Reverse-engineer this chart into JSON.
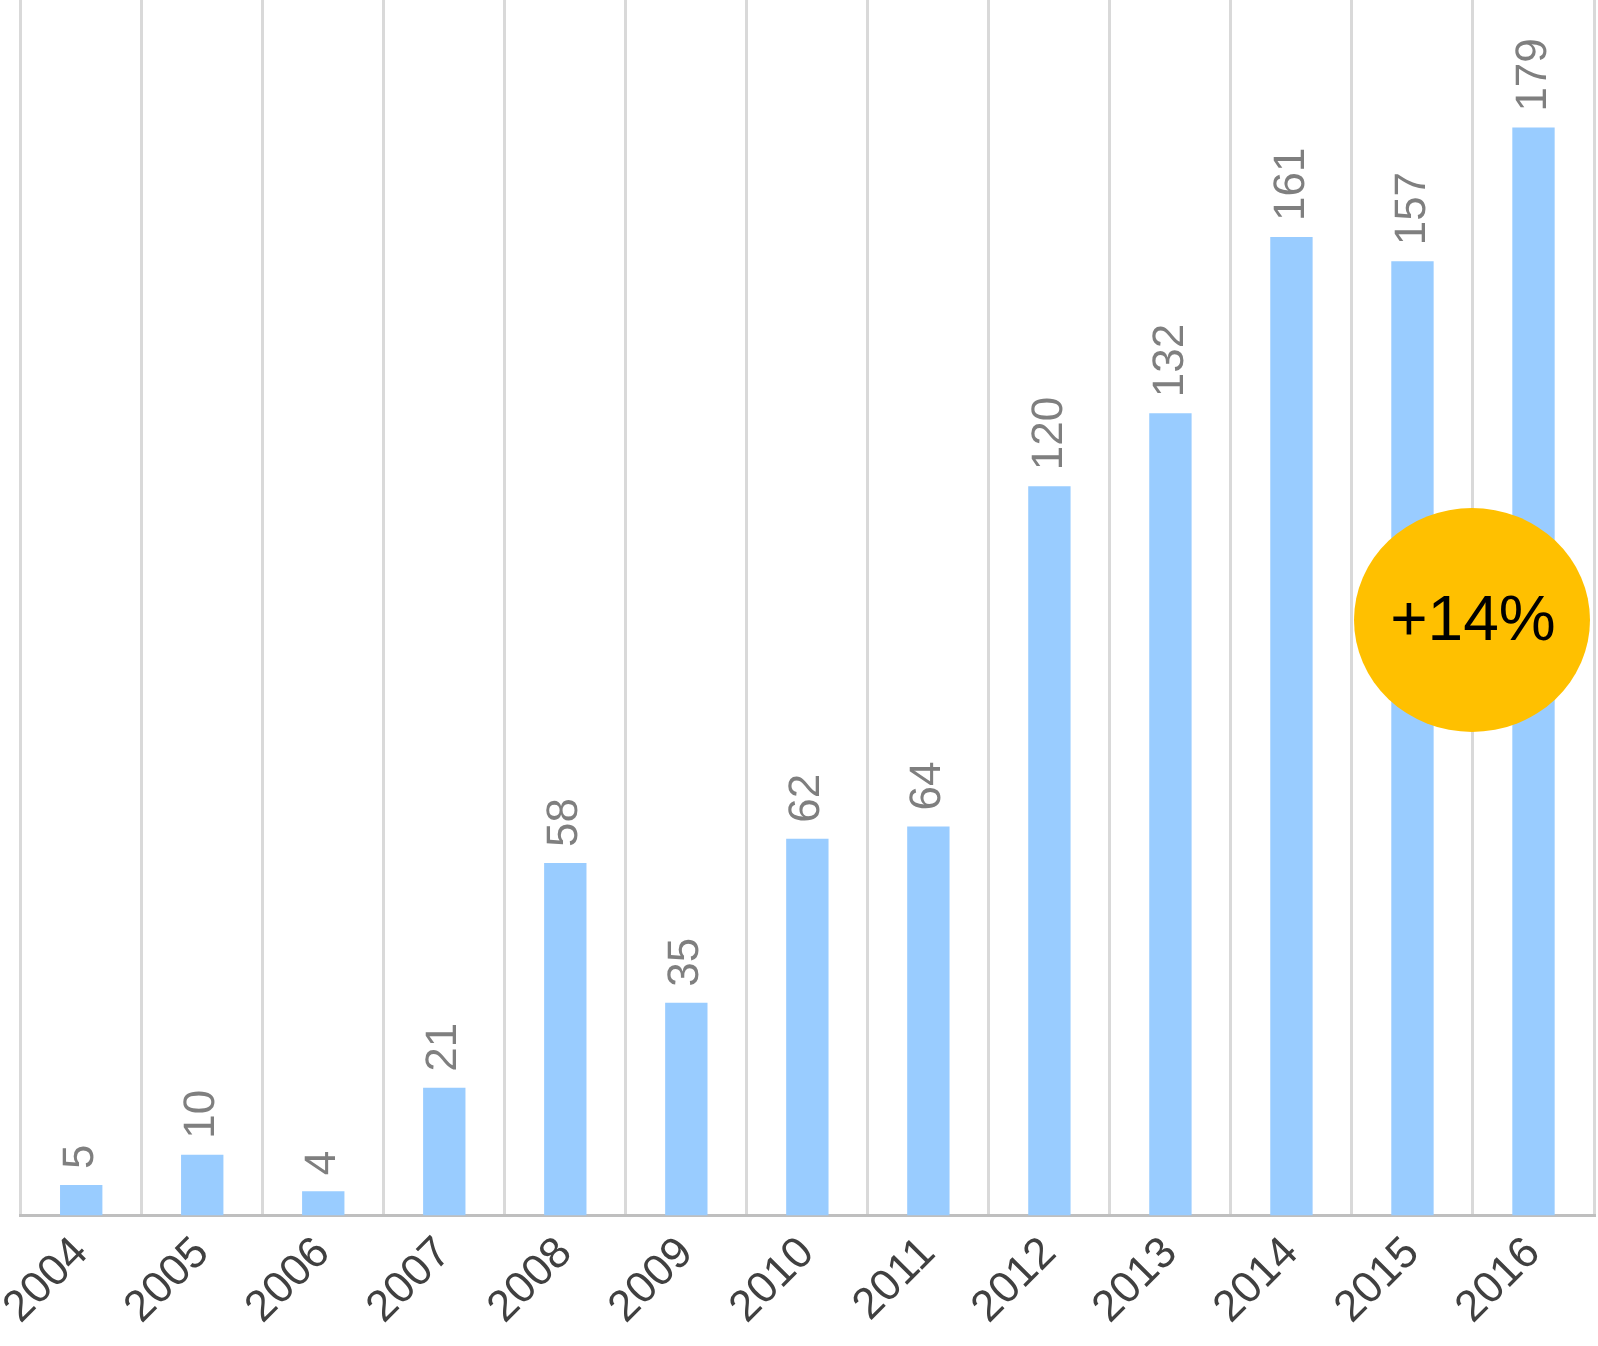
{
  "chart_data": {
    "type": "bar",
    "categories": [
      "2004",
      "2005",
      "2006",
      "2007",
      "2008",
      "2009",
      "2010",
      "2011",
      "2012",
      "2013",
      "2014",
      "2015",
      "2016"
    ],
    "values": [
      5,
      10,
      4,
      21,
      58,
      35,
      62,
      64,
      120,
      132,
      161,
      157,
      179
    ],
    "color": "#99ccff",
    "data_labels": true,
    "grid": "x",
    "legend": false,
    "annotations": [
      "+14%"
    ]
  }
}
